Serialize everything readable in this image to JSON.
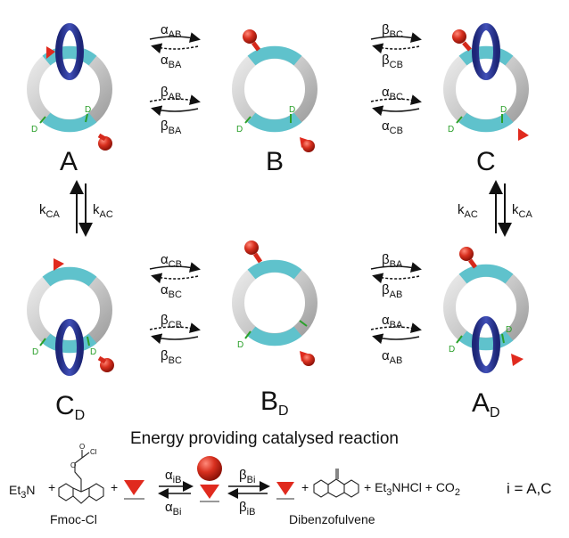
{
  "states": {
    "A": {
      "letter": "A",
      "sub": ""
    },
    "B": {
      "letter": "B",
      "sub": ""
    },
    "C": {
      "letter": "C",
      "sub": ""
    },
    "CD": {
      "letter": "C",
      "sub": "D"
    },
    "BD": {
      "letter": "B",
      "sub": "D"
    },
    "AD": {
      "letter": "A",
      "sub": "D"
    }
  },
  "d_label": "D",
  "transitions": {
    "AB_top": {
      "greek": "α",
      "fwd": "AB",
      "rev": "BA"
    },
    "AB_bot": {
      "greek": "β",
      "fwd": "AB",
      "rev": "BA"
    },
    "BC_top": {
      "greek": "β",
      "fwd": "BC",
      "rev": "CB"
    },
    "BC_bot": {
      "greek": "α",
      "fwd": "BC",
      "rev": "CB"
    },
    "CB_top": {
      "greek": "α",
      "fwd": "CB",
      "rev": "BC"
    },
    "CB_bot": {
      "greek": "β",
      "fwd": "CB",
      "rev": "BC"
    },
    "BA_top": {
      "greek": "β",
      "fwd": "BA",
      "rev": "AB"
    },
    "BA_bot": {
      "greek": "α",
      "fwd": "BA",
      "rev": "AB"
    }
  },
  "vertical": {
    "left": {
      "k": "k",
      "a": "CA",
      "b": "AC"
    },
    "right": {
      "k": "k",
      "a": "AC",
      "b": "CA"
    }
  },
  "reaction": {
    "title": "Energy providing catalysed reaction",
    "et3n_base": "Et",
    "et3n_sub": "3",
    "et3n_n": "N",
    "plus": "+",
    "fmoc_label": "Fmoc-Cl",
    "cl_label": "Cl",
    "o_label": "O",
    "alpha_top": {
      "greek": "α",
      "sub": "iB"
    },
    "alpha_bot": {
      "greek": "α",
      "sub": "Bi"
    },
    "beta_top": {
      "greek": "β",
      "sub": "Bi"
    },
    "beta_bot": {
      "greek": "β",
      "sub": "iB"
    },
    "products_a": "+ Et",
    "products_sub": "3",
    "products_b": "NHCl + CO",
    "products_sub2": "2",
    "dibenzofulvene_label": "Dibenzofulvene",
    "index_note": "i = A,C"
  },
  "colors": {
    "ring": "#c8c8c8",
    "ring_dark": "#9a9a9a",
    "site": "#5fc2cc",
    "shuttle": "#2a3594",
    "ball": "#d6291c",
    "wedge": "#e02a1e",
    "d_mark": "#2aa02a"
  }
}
